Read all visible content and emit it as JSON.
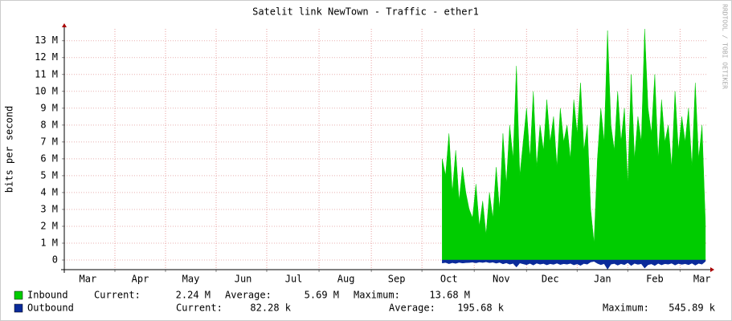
{
  "chart_data": {
    "type": "area",
    "title": "Satelit link NewTown - Traffic - ether1",
    "y_label": "bits per second",
    "watermark": "RRDTOOL / TOBI OETIKER",
    "xlim": [
      0,
      381
    ],
    "xticks": [
      {
        "value": 14,
        "label": "Mar"
      },
      {
        "value": 45,
        "label": "Apr"
      },
      {
        "value": 75,
        "label": "May"
      },
      {
        "value": 106,
        "label": "Jun"
      },
      {
        "value": 136,
        "label": "Jul"
      },
      {
        "value": 167,
        "label": "Aug"
      },
      {
        "value": 197,
        "label": "Sep"
      },
      {
        "value": 228,
        "label": "Oct"
      },
      {
        "value": 259,
        "label": "Nov"
      },
      {
        "value": 288,
        "label": "Dec"
      },
      {
        "value": 319,
        "label": "Jan"
      },
      {
        "value": 350,
        "label": "Feb"
      },
      {
        "value": 378,
        "label": "Mar"
      }
    ],
    "xgrid": [
      30,
      60,
      90,
      120,
      151,
      182,
      212,
      243,
      274,
      304,
      334,
      365
    ],
    "ylim": [
      -570000,
      13700000
    ],
    "yticks": [
      0,
      {
        "value": 1000000,
        "label": "1 M"
      },
      {
        "value": 2000000,
        "label": "2 M"
      },
      {
        "value": 3000000,
        "label": "3 M"
      },
      {
        "value": 4000000,
        "label": "4 M"
      },
      {
        "value": 5000000,
        "label": "5 M"
      },
      {
        "value": 6000000,
        "label": "6 M"
      },
      {
        "value": 7000000,
        "label": "7 M"
      },
      {
        "value": 8000000,
        "label": "8 M"
      },
      {
        "value": 9000000,
        "label": "9 M"
      },
      {
        "value": 10000000,
        "label": "10 M"
      },
      {
        "value": 11000000,
        "label": "11 M"
      },
      {
        "value": 12000000,
        "label": "12 M"
      },
      {
        "value": 13000000,
        "label": "13 M"
      }
    ],
    "grid": true,
    "x": [
      224,
      226,
      228,
      230,
      232,
      234,
      236,
      238,
      240,
      242,
      244,
      246,
      248,
      250,
      252,
      254,
      256,
      258,
      260,
      262,
      264,
      266,
      268,
      270,
      272,
      274,
      276,
      278,
      280,
      282,
      284,
      286,
      288,
      290,
      292,
      294,
      296,
      298,
      300,
      302,
      304,
      306,
      308,
      310,
      312,
      314,
      316,
      318,
      320,
      322,
      324,
      326,
      328,
      330,
      332,
      334,
      336,
      338,
      340,
      342,
      344,
      346,
      348,
      350,
      352,
      354,
      356,
      358,
      360,
      362,
      364,
      366,
      368,
      370,
      372,
      374,
      376,
      378,
      380
    ],
    "series": [
      {
        "name": "Inbound",
        "color": "#00cc00",
        "values": [
          6000000,
          5000000,
          7500000,
          4000000,
          6500000,
          3500000,
          5500000,
          4000000,
          3000000,
          2500000,
          4500000,
          2000000,
          3500000,
          1500000,
          4000000,
          2500000,
          5500000,
          3000000,
          7500000,
          4500000,
          8000000,
          6000000,
          11500000,
          5000000,
          7000000,
          9000000,
          6000000,
          10000000,
          5500000,
          8000000,
          6500000,
          9500000,
          7000000,
          8500000,
          5500000,
          9000000,
          7000000,
          8000000,
          6000000,
          9500000,
          7500000,
          10500000,
          6500000,
          8000000,
          3000000,
          1000000,
          6000000,
          9000000,
          7000000,
          13600000,
          8000000,
          6500000,
          10000000,
          7000000,
          9000000,
          4500000,
          11000000,
          6000000,
          8500000,
          7000000,
          13700000,
          9000000,
          7500000,
          11000000,
          6000000,
          9500000,
          7000000,
          8000000,
          5500000,
          10000000,
          6500000,
          8500000,
          7000000,
          9000000,
          5500000,
          10500000,
          6000000,
          8000000,
          2200000
        ],
        "stats": [
          {
            "label": "Current:",
            "value": "2.24 M"
          },
          {
            "label": "Average:",
            "value": "5.69 M"
          },
          {
            "label": "Maximum:",
            "value": "13.68 M"
          }
        ]
      },
      {
        "name": "Outbound",
        "color": "#0a2a9a",
        "values": [
          -180000,
          -150000,
          -220000,
          -160000,
          -200000,
          -140000,
          -180000,
          -160000,
          -150000,
          -130000,
          -170000,
          -120000,
          -150000,
          -110000,
          -160000,
          -130000,
          -190000,
          -140000,
          -230000,
          -170000,
          -250000,
          -200000,
          -420000,
          -180000,
          -230000,
          -280000,
          -200000,
          -300000,
          -190000,
          -250000,
          -210000,
          -290000,
          -220000,
          -260000,
          -190000,
          -270000,
          -220000,
          -250000,
          -200000,
          -290000,
          -230000,
          -320000,
          -210000,
          -250000,
          -120000,
          -80000,
          -200000,
          -280000,
          -220000,
          -545890,
          -250000,
          -210000,
          -310000,
          -220000,
          -280000,
          -160000,
          -330000,
          -200000,
          -260000,
          -220000,
          -480000,
          -280000,
          -230000,
          -330000,
          -200000,
          -290000,
          -220000,
          -250000,
          -190000,
          -300000,
          -210000,
          -260000,
          -220000,
          -280000,
          -190000,
          -310000,
          -200000,
          -250000,
          -82280
        ],
        "stats": [
          {
            "label": "Current:",
            "value": "82.28 k"
          },
          {
            "label": "Average:",
            "value": "195.68 k"
          },
          {
            "label": "Maximum:",
            "value": "545.89 k"
          }
        ]
      }
    ]
  }
}
